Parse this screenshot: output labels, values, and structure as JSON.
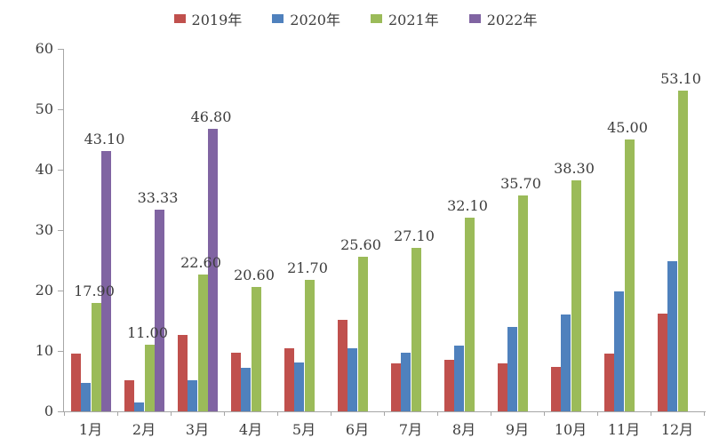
{
  "chart_data": {
    "type": "bar",
    "title": "",
    "xlabel": "",
    "ylabel": "",
    "categories": [
      "1月",
      "2月",
      "3月",
      "4月",
      "5月",
      "6月",
      "7月",
      "8月",
      "9月",
      "10月",
      "11月",
      "12月"
    ],
    "series": [
      {
        "name": "2019年",
        "color": "#C0504D",
        "values": [
          9.6,
          5.2,
          12.7,
          9.7,
          10.4,
          15.2,
          7.9,
          8.6,
          7.9,
          7.3,
          9.5,
          16.2
        ],
        "data_labels": [
          null,
          null,
          null,
          null,
          null,
          null,
          null,
          null,
          null,
          null,
          null,
          null
        ]
      },
      {
        "name": "2020年",
        "color": "#4F81BD",
        "values": [
          4.7,
          1.4,
          5.2,
          7.2,
          8.1,
          10.4,
          9.7,
          10.9,
          14.0,
          16.0,
          19.9,
          24.8
        ],
        "data_labels": [
          null,
          null,
          null,
          null,
          null,
          null,
          null,
          null,
          null,
          null,
          null,
          null
        ]
      },
      {
        "name": "2021年",
        "color": "#9BBB59",
        "values": [
          17.9,
          11.0,
          22.6,
          20.6,
          21.7,
          25.6,
          27.1,
          32.1,
          35.7,
          38.3,
          45.0,
          53.1
        ],
        "data_labels": [
          "17.90",
          "11.00",
          "22.60",
          "20.60",
          "21.70",
          "25.60",
          "27.10",
          "32.10",
          "35.70",
          "38.30",
          "45.00",
          "53.10"
        ]
      },
      {
        "name": "2022年",
        "color": "#8064A2",
        "values": [
          43.1,
          33.33,
          46.8,
          null,
          null,
          null,
          null,
          null,
          null,
          null,
          null,
          null
        ],
        "data_labels": [
          "43.10",
          "33.33",
          "46.80",
          null,
          null,
          null,
          null,
          null,
          null,
          null,
          null,
          null
        ]
      }
    ],
    "ylim": [
      0,
      60
    ],
    "yticks": [
      0,
      10,
      20,
      30,
      40,
      50,
      60
    ],
    "grid": false,
    "legend_position": "top",
    "axis_color": "#A6A6A6",
    "text_color": "#3D3D3D"
  }
}
